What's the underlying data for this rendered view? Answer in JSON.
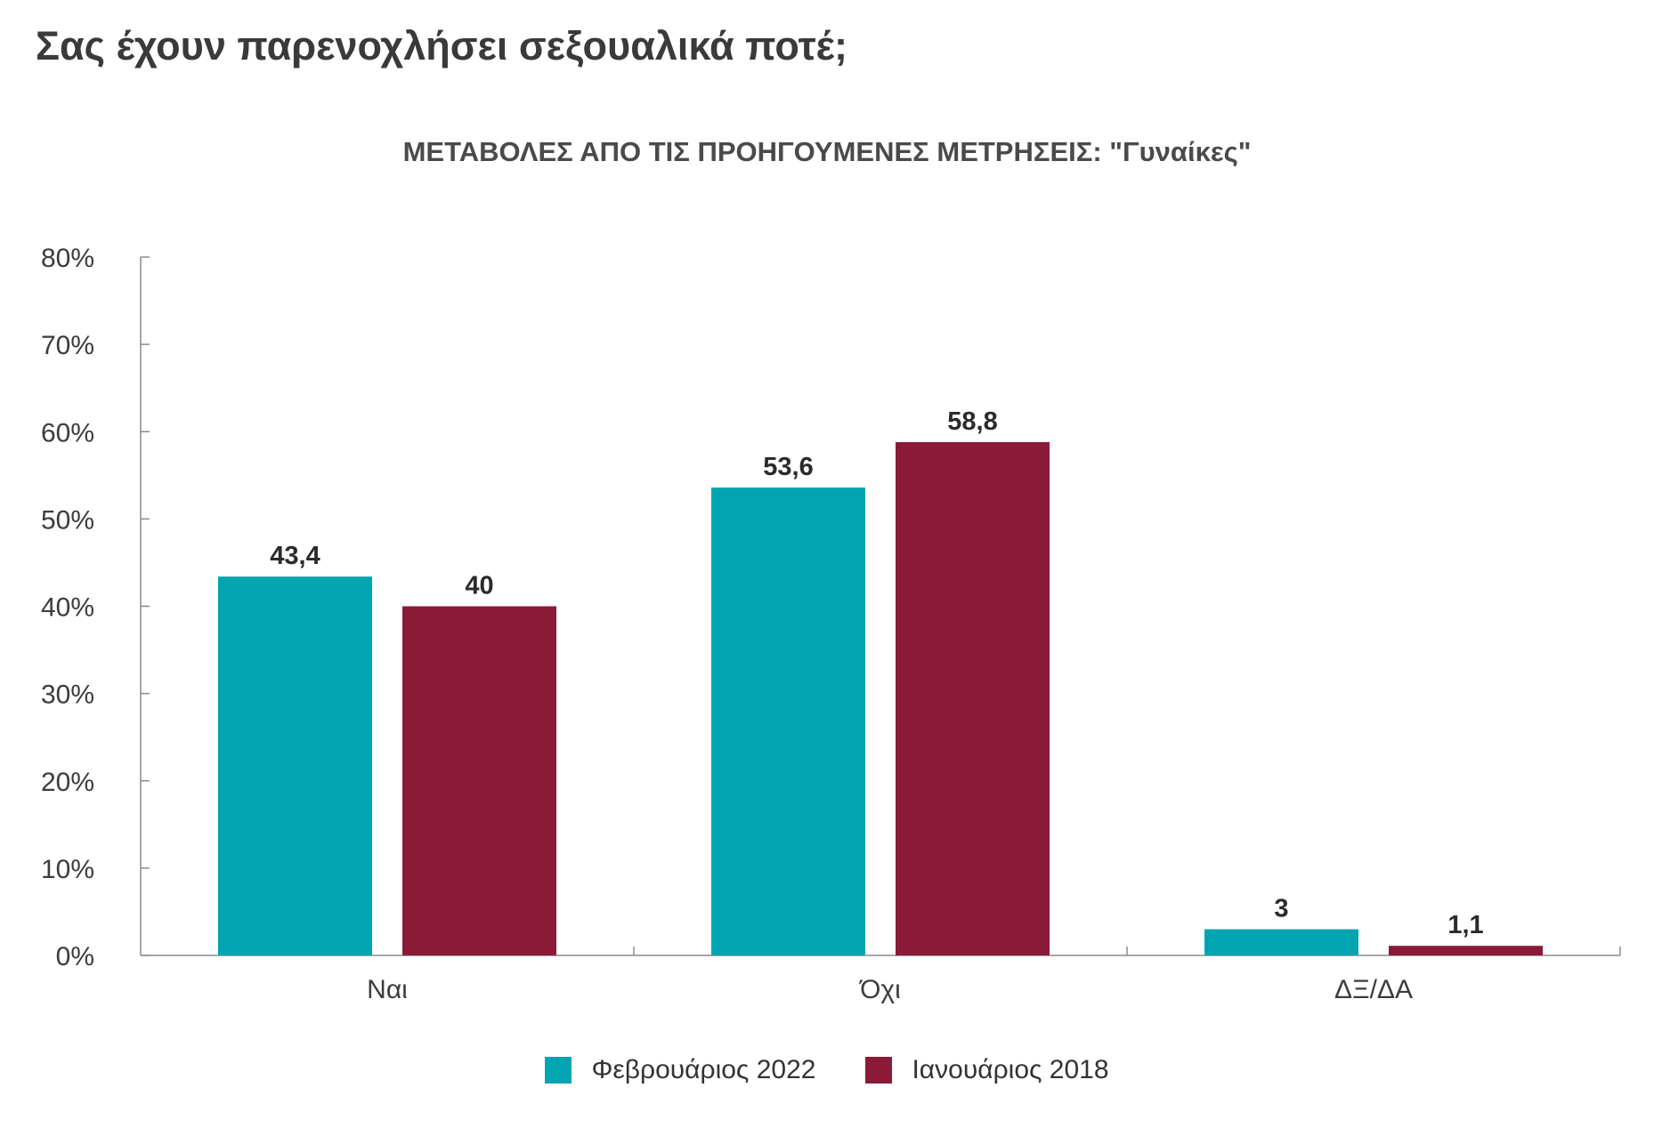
{
  "title": "Σας έχουν παρενοχλήσει σεξουαλικά ποτέ;",
  "chart_data": {
    "type": "bar",
    "title": "ΜΕΤΑΒΟΛΕΣ ΑΠΟ ΤΙΣ ΠΡΟΗΓΟΥΜΕΝΕΣ ΜΕΤΡΗΣΕΙΣ: \"Γυναίκες\"",
    "categories": [
      "Ναι",
      "Όχι",
      "ΔΞ/ΔΑ"
    ],
    "series": [
      {
        "name": "Φεβρουάριος 2022",
        "color": "#00a5b1",
        "values": [
          43.4,
          53.6,
          3
        ],
        "labels": [
          "43,4",
          "53,6",
          "3"
        ]
      },
      {
        "name": "Ιανουάριος 2018",
        "color": "#8b1a38",
        "values": [
          40,
          58.8,
          1.1
        ],
        "labels": [
          "40",
          "58,8",
          "1,1"
        ]
      }
    ],
    "ylim": [
      0,
      80
    ],
    "yticks": [
      0,
      10,
      20,
      30,
      40,
      50,
      60,
      70,
      80
    ],
    "ytick_labels": [
      "0%",
      "10%",
      "20%",
      "30%",
      "40%",
      "50%",
      "60%",
      "70%",
      "80%"
    ],
    "xlabel": "",
    "ylabel": "",
    "grid": false,
    "legend_position": "bottom-center"
  }
}
